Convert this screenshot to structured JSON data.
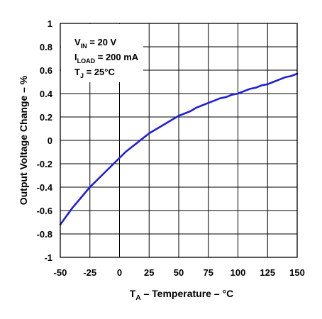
{
  "chart_data": {
    "type": "line",
    "title": "",
    "xlabel": {
      "main": "T",
      "sub": "A",
      "rest": "  – Temperature – °C"
    },
    "ylabel": "Output Voltage Change – %",
    "xlim": [
      -50,
      150
    ],
    "ylim": [
      -1,
      1
    ],
    "x_ticks": [
      "-50",
      "-25",
      "0",
      "25",
      "50",
      "75",
      "100",
      "125",
      "150"
    ],
    "y_ticks": [
      "1",
      "0.8",
      "0.6",
      "0.4",
      "0.2",
      "0",
      "-0.2",
      "-0.4",
      "-0.6",
      "-0.8",
      "-1"
    ],
    "grid": true,
    "series": [
      {
        "color": "#1f1fd6",
        "x": [
          -50,
          -45,
          -40,
          -35,
          -30,
          -25,
          -20,
          -15,
          -10,
          -5,
          0,
          5,
          10,
          15,
          20,
          25,
          30,
          35,
          40,
          45,
          50,
          55,
          60,
          65,
          70,
          75,
          80,
          85,
          90,
          95,
          100,
          105,
          110,
          115,
          120,
          125,
          130,
          135,
          140,
          145,
          150
        ],
        "y": [
          -0.72,
          -0.65,
          -0.58,
          -0.52,
          -0.46,
          -0.4,
          -0.35,
          -0.3,
          -0.25,
          -0.2,
          -0.15,
          -0.1,
          -0.06,
          -0.02,
          0.02,
          0.06,
          0.09,
          0.12,
          0.15,
          0.18,
          0.21,
          0.23,
          0.25,
          0.28,
          0.3,
          0.32,
          0.34,
          0.36,
          0.37,
          0.39,
          0.4,
          0.42,
          0.44,
          0.45,
          0.47,
          0.48,
          0.5,
          0.52,
          0.54,
          0.55,
          0.57
        ]
      }
    ],
    "annotations": [
      {
        "main": "V",
        "sub": "IN",
        "rest": " = 20 V"
      },
      {
        "main": "I",
        "sub": "LOAD",
        "rest": " = 200 mA"
      },
      {
        "main": "T",
        "sub": "J",
        "rest": " = 25°C"
      }
    ]
  }
}
